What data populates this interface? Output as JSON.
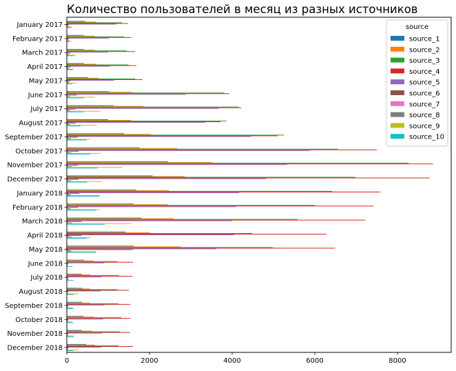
{
  "chart_data": {
    "type": "bar",
    "orientation": "horizontal",
    "title": "Количество пользователей в месяц из разных источников",
    "xlabel": "",
    "ylabel": "",
    "xlim": [
      0,
      9300
    ],
    "xticks": [
      "0",
      "2000",
      "4000",
      "6000",
      "8000"
    ],
    "xtick_values": [
      0,
      2000,
      4000,
      6000,
      8000
    ],
    "legend": {
      "title": "source",
      "placement": "top-right"
    },
    "grid": false,
    "categories": [
      "January 2017",
      "February 2017",
      "March 2017",
      "April 2017",
      "May 2017",
      "June 2017",
      "July 2017",
      "August 2017",
      "September 2017",
      "October 2017",
      "November 2017",
      "December 2017",
      "January 2018",
      "February 2018",
      "March 2018",
      "April 2018",
      "May 2018",
      "June 2018",
      "July 2018",
      "August 2018",
      "September 2018",
      "October 2018",
      "November 2018",
      "December 2018"
    ],
    "series": [
      {
        "name": "source_1",
        "color": "#1f77b4",
        "values": [
          440,
          410,
          410,
          410,
          510,
          1020,
          1130,
          1000,
          1390,
          1760,
          2450,
          2080,
          1680,
          1610,
          1800,
          1420,
          1620,
          420,
          360,
          370,
          370,
          400,
          360,
          470
        ]
      },
      {
        "name": "source_2",
        "color": "#ff7f0e",
        "values": [
          710,
          670,
          680,
          710,
          760,
          1580,
          1850,
          1560,
          2030,
          2680,
          3530,
          2850,
          2470,
          2440,
          2590,
          2010,
          2760,
          650,
          570,
          560,
          560,
          660,
          610,
          680
        ]
      },
      {
        "name": "source_3",
        "color": "#2ca02c",
        "values": [
          1330,
          1390,
          1440,
          1490,
          1650,
          3810,
          4160,
          3860,
          5260,
          6560,
          8270,
          6980,
          6420,
          6010,
          5580,
          4490,
          4980,
          1220,
          1260,
          1220,
          1250,
          1320,
          1280,
          1250
        ]
      },
      {
        "name": "source_4",
        "color": "#d62728",
        "values": [
          1480,
          1560,
          1650,
          1680,
          1830,
          3930,
          4220,
          3720,
          5110,
          7500,
          8860,
          8780,
          7590,
          7420,
          7220,
          6280,
          6490,
          1600,
          1590,
          1500,
          1540,
          1540,
          1530,
          1600
        ]
      },
      {
        "name": "source_5",
        "color": "#9467bd",
        "values": [
          1190,
          1010,
          1000,
          1040,
          1140,
          2870,
          3670,
          3340,
          4460,
          5880,
          5330,
          4820,
          4170,
          4090,
          3990,
          4040,
          3620,
          910,
          840,
          820,
          910,
          880,
          850,
          830
        ]
      },
      {
        "name": "source_6",
        "color": "#8c564b",
        "values": [
          60,
          55,
          90,
          90,
          90,
          240,
          210,
          210,
          260,
          290,
          270,
          280,
          300,
          270,
          360,
          350,
          1600,
          40,
          40,
          40,
          40,
          40,
          40,
          40
        ]
      },
      {
        "name": "source_7",
        "color": "#e377c2",
        "values": [
          25,
          25,
          30,
          30,
          30,
          30,
          50,
          50,
          40,
          40,
          40,
          40,
          50,
          40,
          50,
          40,
          70,
          20,
          20,
          20,
          20,
          20,
          20,
          20
        ]
      },
      {
        "name": "source_8",
        "color": "#7f7f7f",
        "values": [
          35,
          40,
          50,
          50,
          50,
          80,
          90,
          80,
          100,
          110,
          120,
          100,
          100,
          100,
          120,
          110,
          110,
          20,
          30,
          30,
          30,
          30,
          30,
          30
        ]
      },
      {
        "name": "source_9",
        "color": "#bcbd22",
        "values": [
          120,
          110,
          230,
          170,
          220,
          680,
          820,
          730,
          570,
          820,
          1340,
          860,
          800,
          800,
          1560,
          580,
          720,
          20,
          60,
          270,
          140,
          130,
          160,
          270
        ]
      },
      {
        "name": "source_10",
        "color": "#17becf",
        "values": [
          110,
          60,
          170,
          140,
          120,
          410,
          400,
          330,
          480,
          570,
          740,
          490,
          790,
          700,
          920,
          490,
          700,
          140,
          170,
          160,
          160,
          160,
          170,
          150
        ]
      }
    ]
  }
}
